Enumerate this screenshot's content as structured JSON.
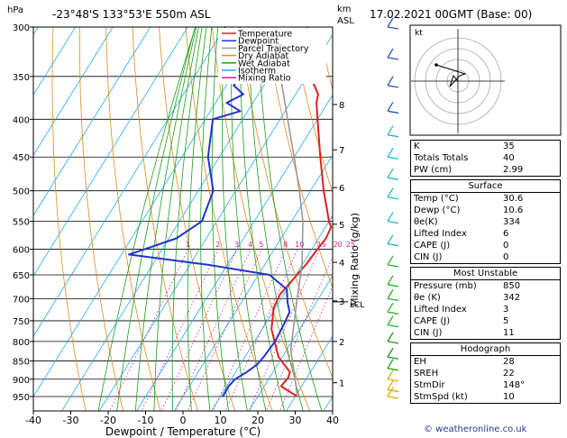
{
  "header": {
    "location": "-23°48'S  133°53'E  550m  ASL",
    "datetime": "17.02.2021  00GMT  (Base: 00)",
    "left_unit": "hPa",
    "right_unit_km": "km",
    "right_unit_asl": "ASL"
  },
  "chart_data": {
    "type": "line",
    "title": "",
    "xlabel": "Dewpoint / Temperature (°C)",
    "ylabel": "hPa",
    "xlim": [
      -40,
      40
    ],
    "ylim": [
      300,
      1000
    ],
    "y_scale": "log",
    "x_ticks": [
      -40,
      -30,
      -20,
      -10,
      0,
      10,
      20,
      30,
      40
    ],
    "pressure_levels": [
      300,
      350,
      400,
      450,
      500,
      550,
      600,
      650,
      700,
      750,
      800,
      850,
      900,
      950
    ],
    "km_ticks": [
      {
        "label": "1",
        "p": 910
      },
      {
        "label": "2",
        "p": 800
      },
      {
        "label": "3",
        "p": 705
      },
      {
        "label": "4",
        "p": 625
      },
      {
        "label": "5",
        "p": 555
      },
      {
        "label": "6",
        "p": 495
      },
      {
        "label": "7",
        "p": 440
      },
      {
        "label": "8",
        "p": 382
      }
    ],
    "lcl_label": "LCL",
    "lcl_p": 707,
    "mixing_ratio_axis_label": "Mixing Ratio (g/kg)",
    "mixing_ratio_labels": [
      "1",
      "2",
      "3",
      "4",
      "5",
      "8",
      "10",
      "15",
      "20",
      "25"
    ],
    "legend": [
      {
        "name": "Temperature",
        "color": "#e02020"
      },
      {
        "name": "Dewpoint",
        "color": "#2233cc"
      },
      {
        "name": "Parcel Trajectory",
        "color": "#999999"
      },
      {
        "name": "Dry Adiabat",
        "color": "#e08a1e"
      },
      {
        "name": "Wet Adiabat",
        "color": "#1aa01a"
      },
      {
        "name": "Isotherm",
        "color": "#22aaee"
      },
      {
        "name": "Mixing Ratio",
        "color": "#d0209a"
      }
    ],
    "series": [
      {
        "name": "Temperature",
        "color": "#e02020",
        "points": [
          [
            30.6,
            950
          ],
          [
            24.5,
            920
          ],
          [
            25,
            895
          ],
          [
            24.5,
            880
          ],
          [
            19,
            840
          ],
          [
            12.5,
            770
          ],
          [
            9.5,
            720
          ],
          [
            9,
            690
          ],
          [
            10,
            660
          ],
          [
            11,
            630
          ],
          [
            11.5,
            600
          ],
          [
            12,
            580
          ],
          [
            11.5,
            560
          ],
          [
            10,
            550
          ],
          [
            3.5,
            500
          ],
          [
            -3,
            450
          ],
          [
            -10,
            400
          ],
          [
            -13,
            380
          ],
          [
            -14,
            370
          ],
          [
            -19,
            350
          ],
          [
            -26,
            320
          ],
          [
            -28,
            300
          ]
        ]
      },
      {
        "name": "Dewpoint",
        "color": "#2233cc",
        "points": [
          [
            10.6,
            950
          ],
          [
            10.5,
            920
          ],
          [
            11,
            900
          ],
          [
            13,
            880
          ],
          [
            14.5,
            860
          ],
          [
            15,
            840
          ],
          [
            15.5,
            800
          ],
          [
            15,
            760
          ],
          [
            14.5,
            730
          ],
          [
            12.5,
            710
          ],
          [
            10,
            680
          ],
          [
            3,
            650
          ],
          [
            -15,
            630
          ],
          [
            -38,
            610
          ],
          [
            -28,
            580
          ],
          [
            -24,
            550
          ],
          [
            -26,
            500
          ],
          [
            -33,
            450
          ],
          [
            -38,
            400
          ],
          [
            -32,
            390
          ],
          [
            -37,
            380
          ],
          [
            -34,
            370
          ],
          [
            -38,
            360
          ],
          [
            -38,
            350
          ],
          [
            -45,
            330
          ],
          [
            -50,
            300
          ]
        ]
      },
      {
        "name": "Parcel Trajectory",
        "color": "#999999",
        "points": [
          [
            30.6,
            950
          ],
          [
            21,
            820
          ],
          [
            14.7,
            707
          ],
          [
            10,
            630
          ],
          [
            3,
            550
          ],
          [
            -3,
            500
          ],
          [
            -10,
            450
          ],
          [
            -18,
            400
          ],
          [
            -27,
            350
          ],
          [
            -37,
            300
          ]
        ]
      }
    ],
    "grid": true
  },
  "hodograph": {
    "label": "kt",
    "rings": [
      "10",
      "20",
      "30",
      "40"
    ]
  },
  "indices": {
    "rows": [
      {
        "label": "K",
        "value": "35"
      },
      {
        "label": "Totals Totals",
        "value": "40"
      },
      {
        "label": "PW (cm)",
        "value": "2.99"
      }
    ]
  },
  "surface": {
    "title": "Surface",
    "rows": [
      {
        "label": "Temp (°C)",
        "value": "30.6"
      },
      {
        "label": "Dewp (°C)",
        "value": "10.6"
      },
      {
        "label": "θe(K)",
        "value": "334"
      },
      {
        "label": "Lifted Index",
        "value": "6"
      },
      {
        "label": "CAPE (J)",
        "value": "0"
      },
      {
        "label": "CIN (J)",
        "value": "0"
      }
    ]
  },
  "most_unstable": {
    "title": "Most Unstable",
    "rows": [
      {
        "label": "Pressure (mb)",
        "value": "850"
      },
      {
        "label": "θe (K)",
        "value": "342"
      },
      {
        "label": "Lifted Index",
        "value": "3"
      },
      {
        "label": "CAPE (J)",
        "value": "5"
      },
      {
        "label": "CIN (J)",
        "value": "11"
      }
    ]
  },
  "hodograph_table": {
    "title": "Hodograph",
    "rows": [
      {
        "label": "EH",
        "value": "28"
      },
      {
        "label": "SREH",
        "value": "22"
      },
      {
        "label": "StmDir",
        "value": "148°"
      },
      {
        "label": "StmSpd (kt)",
        "value": "10"
      }
    ]
  },
  "footer": {
    "copyright": "© weatheronline.co.uk"
  }
}
